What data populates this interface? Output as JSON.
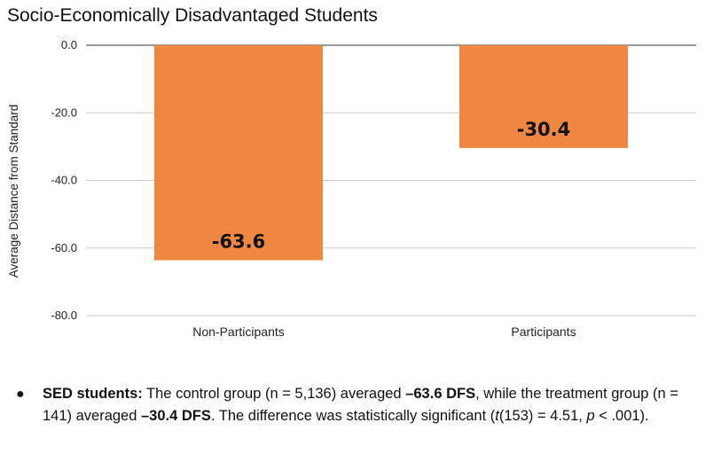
{
  "chart_data": {
    "type": "bar",
    "title": "Socio-Economically Disadvantaged Students",
    "xlabel": "",
    "ylabel": "Average Distance from Standard",
    "categories": [
      "Non-Participants",
      "Participants"
    ],
    "values": [
      -63.6,
      -30.4
    ],
    "data_labels": [
      "-63.6",
      "-30.4"
    ],
    "ylim": [
      -80,
      0
    ],
    "yticks": [
      0,
      -20,
      -40,
      -60,
      -80
    ],
    "ytick_labels": [
      "0.0",
      "-20.0",
      "-40.0",
      "-60.0",
      "-80.0"
    ],
    "grid": true,
    "bar_color": "#EF8641"
  },
  "note": {
    "bullet": "●",
    "lead": "SED students:",
    "t1": " The control group (n = 5,136) averaged ",
    "v1": "–63.6 DFS",
    "t2": ", while the treatment group (n = 141) averaged ",
    "v2": "–30.4 DFS",
    "t3": ". The difference was statistically significant (",
    "t_var": "t",
    "t4": "(153) = 4.51, ",
    "p_var": "p",
    "t5": " < .001)."
  }
}
